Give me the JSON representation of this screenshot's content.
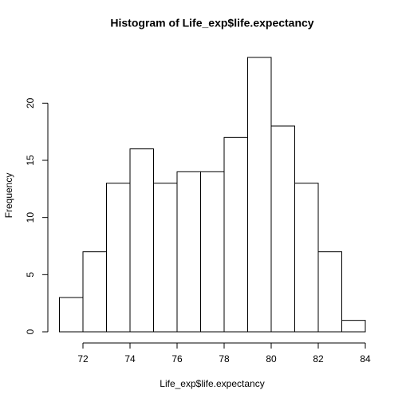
{
  "chart_data": {
    "type": "histogram",
    "title": "Histogram of Life_exp$life.expectancy",
    "x_label": "Life_exp$life.expectancy",
    "y_label": "Frequency",
    "bins": [
      71,
      72,
      73,
      74,
      75,
      76,
      77,
      78,
      79,
      80,
      81,
      82,
      83,
      84
    ],
    "values": [
      3,
      7,
      13,
      16,
      13,
      14,
      14,
      17,
      24,
      18,
      13,
      7,
      1
    ],
    "xlim": [
      71,
      84
    ],
    "ylim": [
      0,
      24
    ],
    "xticks": [
      72,
      74,
      76,
      78,
      80,
      82,
      84
    ],
    "yticks": [
      0,
      5,
      10,
      15,
      20
    ],
    "color": "#ffffff"
  }
}
